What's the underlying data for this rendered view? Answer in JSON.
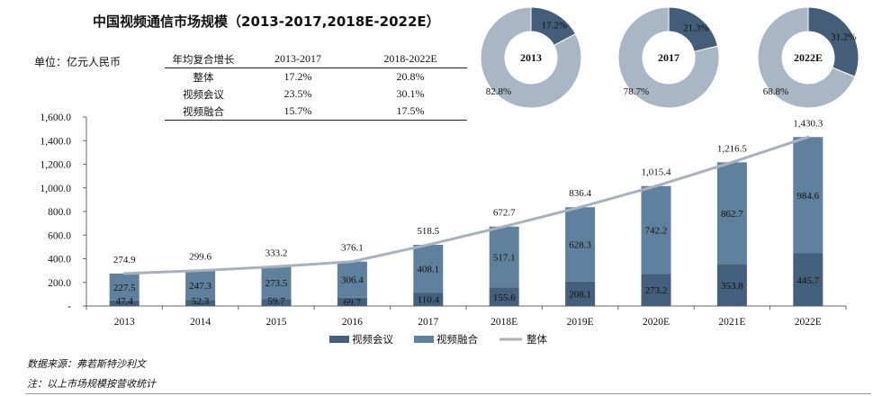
{
  "title": "中国视频通信市场规模（2013-2017,2018E-2022E）",
  "unit_label": "单位：亿元人民币",
  "cagr_table": {
    "header": [
      "年均复合增长",
      "2013-2017",
      "2018-2022E"
    ],
    "rows": [
      [
        "整体",
        "17.2%",
        "20.8%"
      ],
      [
        "视频会议",
        "23.5%",
        "30.1%"
      ],
      [
        "视频融合",
        "15.7%",
        "17.5%"
      ]
    ]
  },
  "source_note": "数据来源：弗若斯特沙利文",
  "footnote": "注：以上市场规模按营收统计",
  "colors": {
    "conference": "#44607c",
    "fusion": "#60819e",
    "total_line": "#a8b2bd",
    "donut_fusion": "#a9b6c4",
    "donut_conference": "#445d78"
  },
  "chart_data": {
    "type": "bar",
    "stacked": true,
    "categories": [
      "2013",
      "2014",
      "2015",
      "2016",
      "2017",
      "2018E",
      "2019E",
      "2020E",
      "2021E",
      "2022E"
    ],
    "series": [
      {
        "name": "视频会议",
        "values": [
          47.4,
          52.3,
          59.7,
          69.7,
          110.4,
          155.6,
          208.1,
          273.2,
          353.8,
          445.7
        ],
        "labels": [
          "47.4",
          "52.3",
          "59.7",
          "69.7",
          "110.4",
          "155.6",
          "208.1",
          "273.2",
          "353.8",
          "445.7"
        ]
      },
      {
        "name": "视频融合",
        "values": [
          227.5,
          247.3,
          273.5,
          306.4,
          408.1,
          517.1,
          628.3,
          742.2,
          862.7,
          984.6
        ],
        "labels": [
          "227.5",
          "247.3",
          "273.5",
          "306.4",
          "408.1",
          "517.1",
          "628.3",
          "742.2",
          "862.7",
          "984.6"
        ]
      },
      {
        "name": "整体",
        "type": "line",
        "values": [
          274.9,
          299.6,
          333.2,
          376.1,
          518.5,
          672.7,
          836.4,
          1015.4,
          1216.5,
          1430.3
        ],
        "labels": [
          "274.9",
          "299.6",
          "333.2",
          "376.1",
          "518.5",
          "672.7",
          "836.4",
          "1,015.4",
          "1,216.5",
          "1,430.3"
        ]
      }
    ],
    "ylim": [
      0,
      1600
    ],
    "yticks": [
      "-",
      "200.0",
      "400.0",
      "600.0",
      "800.0",
      "1,000.0",
      "1,200.0",
      "1,400.0",
      "1,600.0"
    ],
    "legend": [
      "视频会议",
      "视频融合",
      "整体"
    ],
    "donuts": [
      {
        "label": "2013",
        "conference_pct": 17.2,
        "fusion_pct": 82.8,
        "conference_label": "17.2%",
        "fusion_label": "82.8%"
      },
      {
        "label": "2017",
        "conference_pct": 21.3,
        "fusion_pct": 78.7,
        "conference_label": "21.3%",
        "fusion_label": "78.7%"
      },
      {
        "label": "2022E",
        "conference_pct": 31.2,
        "fusion_pct": 68.8,
        "conference_label": "31.2%",
        "fusion_label": "68.8%"
      }
    ]
  }
}
